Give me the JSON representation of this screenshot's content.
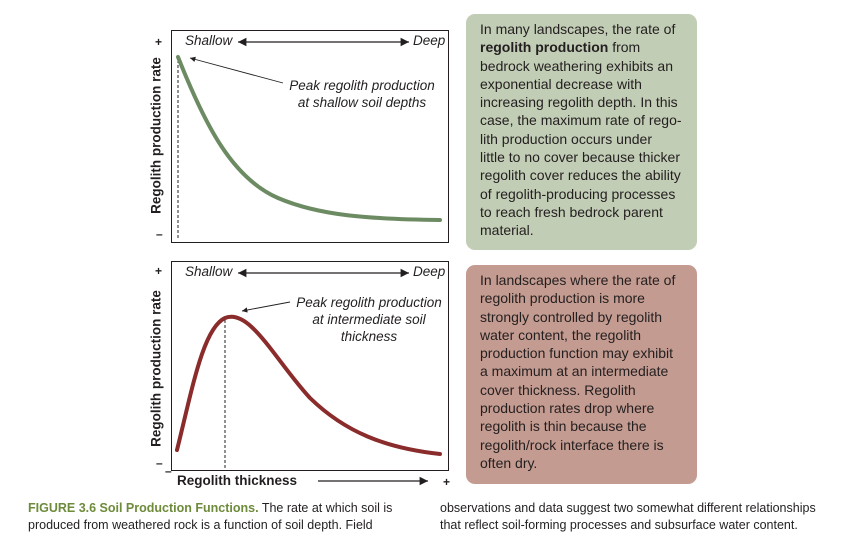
{
  "top_panel": {
    "y_label": "Regolith production rate",
    "plus": "+",
    "minus": "–",
    "shallow": "Shallow",
    "deep": "Deep",
    "annotation": [
      "Peak regolith production",
      "at shallow soil depths"
    ],
    "curve_color": "#6d8b63"
  },
  "bottom_panel": {
    "y_label": "Regolith production rate",
    "plus": "+",
    "minus": "–",
    "shallow": "Shallow",
    "deep": "Deep",
    "annotation": [
      "Peak regolith production",
      "at intermediate soil",
      "thickness"
    ],
    "x_label": "Regolith thickness",
    "x_minus": "–",
    "x_plus": "+",
    "curve_color": "#8b2c2c"
  },
  "box1": {
    "lines": [
      [
        {
          "t": "In many landscapes, the rate of",
          "b": false
        }
      ],
      [
        {
          "t": "regolith production",
          "b": true
        },
        {
          "t": " from",
          "b": false
        }
      ],
      [
        {
          "t": "bedrock weathering exhibits an",
          "b": false
        }
      ],
      [
        {
          "t": "exponential decrease with",
          "b": false
        }
      ],
      [
        {
          "t": "increasing regolith depth. In this",
          "b": false
        }
      ],
      [
        {
          "t": "case, the maximum rate of rego-",
          "b": false
        }
      ],
      [
        {
          "t": "lith production occurs under",
          "b": false
        }
      ],
      [
        {
          "t": "little to no cover because thicker",
          "b": false
        }
      ],
      [
        {
          "t": "regolith cover reduces the ability",
          "b": false
        }
      ],
      [
        {
          "t": "of regolith-producing processes",
          "b": false
        }
      ],
      [
        {
          "t": "to reach fresh bedrock parent",
          "b": false
        }
      ],
      [
        {
          "t": "material.",
          "b": false
        }
      ]
    ],
    "color": "#c2cdb5"
  },
  "box2": {
    "lines": [
      [
        {
          "t": "In landscapes where the rate of",
          "b": false
        }
      ],
      [
        {
          "t": "regolith production is more",
          "b": false
        }
      ],
      [
        {
          "t": "strongly controlled by regolith",
          "b": false
        }
      ],
      [
        {
          "t": "water content, the regolith",
          "b": false
        }
      ],
      [
        {
          "t": "production function may exhibit",
          "b": false
        }
      ],
      [
        {
          "t": "a maximum at an intermediate",
          "b": false
        }
      ],
      [
        {
          "t": "cover thickness.  Regolith",
          "b": false
        }
      ],
      [
        {
          "t": "production rates drop where",
          "b": false
        }
      ],
      [
        {
          "t": "regolith is thin because the",
          "b": false
        }
      ],
      [
        {
          "t": "regolith/rock interface there is",
          "b": false
        }
      ],
      [
        {
          "t": "often dry.",
          "b": false
        }
      ]
    ],
    "color": "#c49b90"
  },
  "caption": {
    "label": "FIGURE 3.6  Soil Production Functions.",
    "left_rest": " The rate at which soil is",
    "left_line2": "produced from weathered rock is a function of soil depth. Field",
    "right_line1": "observations and data suggest two somewhat different relationships",
    "right_line2": "that reflect soil-forming processes and subsurface water content."
  }
}
